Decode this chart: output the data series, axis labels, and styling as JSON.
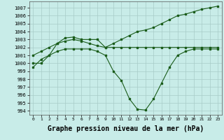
{
  "line1": [
    1000,
    1000,
    1001,
    1002.5,
    1003.2,
    1003.3,
    1003,
    1003,
    1003,
    1002,
    1002.5,
    1003,
    1003.5,
    1004,
    1004.2,
    1004.5,
    1005,
    1005.5,
    1006,
    1006.2,
    1006.5,
    1006.8,
    1007,
    1007.2
  ],
  "line2": [
    1001,
    1001.5,
    1002,
    1002.5,
    1002.8,
    1003,
    1002.8,
    1002.5,
    1002.2,
    1002,
    1002,
    1002,
    1002,
    1002,
    1002,
    1002,
    1002,
    1002,
    1002,
    1002,
    1002,
    1002,
    1002,
    1002
  ],
  "line3": [
    999.5,
    1000.5,
    1001,
    1001.5,
    1001.8,
    1001.8,
    1001.8,
    1001.8,
    1001.5,
    1001,
    999,
    997.8,
    995.5,
    994.2,
    994.1,
    995.5,
    997.5,
    999.5,
    1001,
    1001.5,
    1001.8,
    1001.8,
    1001.8,
    1001.8
  ],
  "x": [
    0,
    1,
    2,
    3,
    4,
    5,
    6,
    7,
    8,
    9,
    10,
    11,
    12,
    13,
    14,
    15,
    16,
    17,
    18,
    19,
    20,
    21,
    22,
    23
  ],
  "ylim": [
    993.5,
    1007.8
  ],
  "yticks": [
    994,
    995,
    996,
    997,
    998,
    999,
    1000,
    1001,
    1002,
    1003,
    1004,
    1005,
    1006,
    1007
  ],
  "xtick_labels": [
    "0",
    "1",
    "2",
    "3",
    "4",
    "5",
    "6",
    "7",
    "8",
    "9",
    "10",
    "11",
    "12",
    "13",
    "14",
    "15",
    "16",
    "17",
    "18",
    "19",
    "20",
    "21",
    "22",
    "23"
  ],
  "line_color": "#1a5c1a",
  "bg_color": "#c8ece8",
  "grid_color": "#a8ccc8",
  "xlabel": "Graphe pression niveau de la mer (hPa)",
  "xlabel_fontsize": 7,
  "marker": "s",
  "marker_size": 2.0,
  "linewidth": 0.8
}
